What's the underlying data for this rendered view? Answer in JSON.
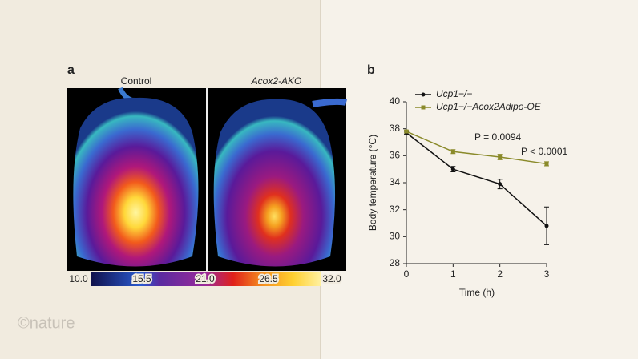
{
  "page": {
    "watermark": "©nature"
  },
  "panel_a": {
    "label": "a",
    "titles": [
      "Control",
      "Acox2-AKO"
    ],
    "colorbar_ticks": [
      {
        "value": 10,
        "label": "10.0"
      },
      {
        "value": 15.5,
        "label": "15.5"
      },
      {
        "value": 21,
        "label": "21.0"
      },
      {
        "value": 26.5,
        "label": "26.5"
      },
      {
        "value": 32,
        "label": "32.0"
      }
    ]
  },
  "chart_data": {
    "type": "line",
    "panel_label": "b",
    "x_label": "Time (h)",
    "y_label": "Body temperature (°C)",
    "x": [
      0,
      1,
      2,
      3
    ],
    "xlim": [
      0,
      3
    ],
    "xticks": [
      0,
      1,
      2,
      3
    ],
    "ylim": [
      28,
      40
    ],
    "yticks": [
      28,
      30,
      32,
      34,
      36,
      38,
      40
    ],
    "series": [
      {
        "name": "Ucp1−/−",
        "color": "#111111",
        "values": [
          37.7,
          35.0,
          33.9,
          30.8
        ],
        "errors": [
          0.1,
          0.2,
          0.35,
          1.4
        ]
      },
      {
        "name": "Ucp1−/−Acox2Adipo-OE",
        "color": "#8a8a2a",
        "values": [
          37.8,
          36.3,
          35.9,
          35.4
        ],
        "errors": [
          0.1,
          0.15,
          0.2,
          0.15
        ]
      }
    ],
    "annotations": [
      "P = 0.0094",
      "P < 0.0001"
    ]
  }
}
